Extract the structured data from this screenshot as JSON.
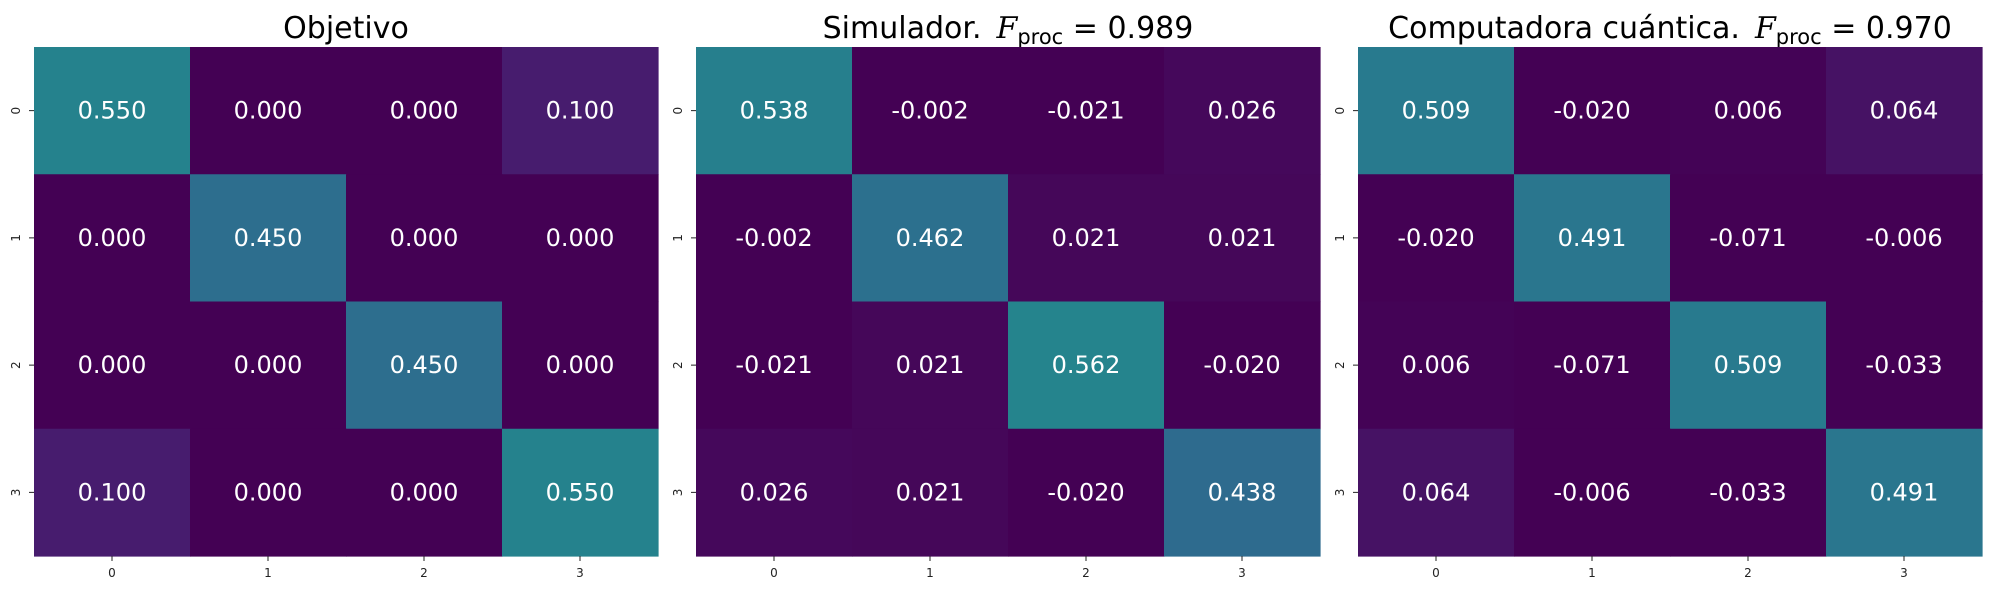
{
  "chart_data": [
    {
      "type": "heatmap",
      "title": "Objetivo",
      "title_fidelity": "",
      "x_ticks": [
        "0",
        "1",
        "2",
        "3"
      ],
      "y_ticks": [
        "0",
        "1",
        "2",
        "3"
      ],
      "values": [
        [
          0.55,
          0.0,
          0.0,
          0.1
        ],
        [
          0.0,
          0.45,
          0.0,
          0.0
        ],
        [
          0.0,
          0.0,
          0.45,
          0.0
        ],
        [
          0.1,
          0.0,
          0.0,
          0.55
        ]
      ],
      "labels": [
        [
          "0.550",
          "0.000",
          "0.000",
          "0.100"
        ],
        [
          "0.000",
          "0.450",
          "0.000",
          "0.000"
        ],
        [
          "0.000",
          "0.000",
          "0.450",
          "0.000"
        ],
        [
          "0.100",
          "0.000",
          "0.000",
          "0.550"
        ]
      ],
      "colorbar": false
    },
    {
      "type": "heatmap",
      "title": "Simulador.",
      "title_fidelity": "0.989",
      "x_ticks": [
        "0",
        "1",
        "2",
        "3"
      ],
      "y_ticks": [
        "0",
        "1",
        "2",
        "3"
      ],
      "values": [
        [
          0.538,
          -0.002,
          -0.021,
          0.026
        ],
        [
          -0.002,
          0.462,
          0.021,
          0.021
        ],
        [
          -0.021,
          0.021,
          0.562,
          -0.02
        ],
        [
          0.026,
          0.021,
          -0.02,
          0.438
        ]
      ],
      "labels": [
        [
          "0.538",
          "-0.002",
          "-0.021",
          "0.026"
        ],
        [
          "-0.002",
          "0.462",
          "0.021",
          "0.021"
        ],
        [
          "-0.021",
          "0.021",
          "0.562",
          "-0.020"
        ],
        [
          "0.026",
          "0.021",
          "-0.020",
          "0.438"
        ]
      ],
      "colorbar": false
    },
    {
      "type": "heatmap",
      "title": "Computadora cuántica.",
      "title_fidelity": "0.970",
      "x_ticks": [
        "0",
        "1",
        "2",
        "3"
      ],
      "y_ticks": [
        "0",
        "1",
        "2",
        "3"
      ],
      "values": [
        [
          0.509,
          -0.02,
          0.006,
          0.064
        ],
        [
          -0.02,
          0.491,
          -0.071,
          -0.006
        ],
        [
          0.006,
          -0.071,
          0.509,
          -0.033
        ],
        [
          0.064,
          -0.006,
          -0.033,
          0.491
        ]
      ],
      "labels": [
        [
          "0.509",
          "-0.020",
          "0.006",
          "0.064"
        ],
        [
          "-0.020",
          "0.491",
          "-0.071",
          "-0.006"
        ],
        [
          "0.006",
          "-0.071",
          "0.509",
          "-0.033"
        ],
        [
          "0.064",
          "-0.006",
          "-0.033",
          "0.491"
        ]
      ],
      "colorbar": false
    }
  ],
  "fidelity_symbol": "F",
  "fidelity_subscript": "proc",
  "fidelity_equals": "=",
  "colormap": "viridis",
  "color_range": [
    0.0,
    1.0
  ],
  "cell_text_color": "#ffffff",
  "background_color": "#ffffff"
}
